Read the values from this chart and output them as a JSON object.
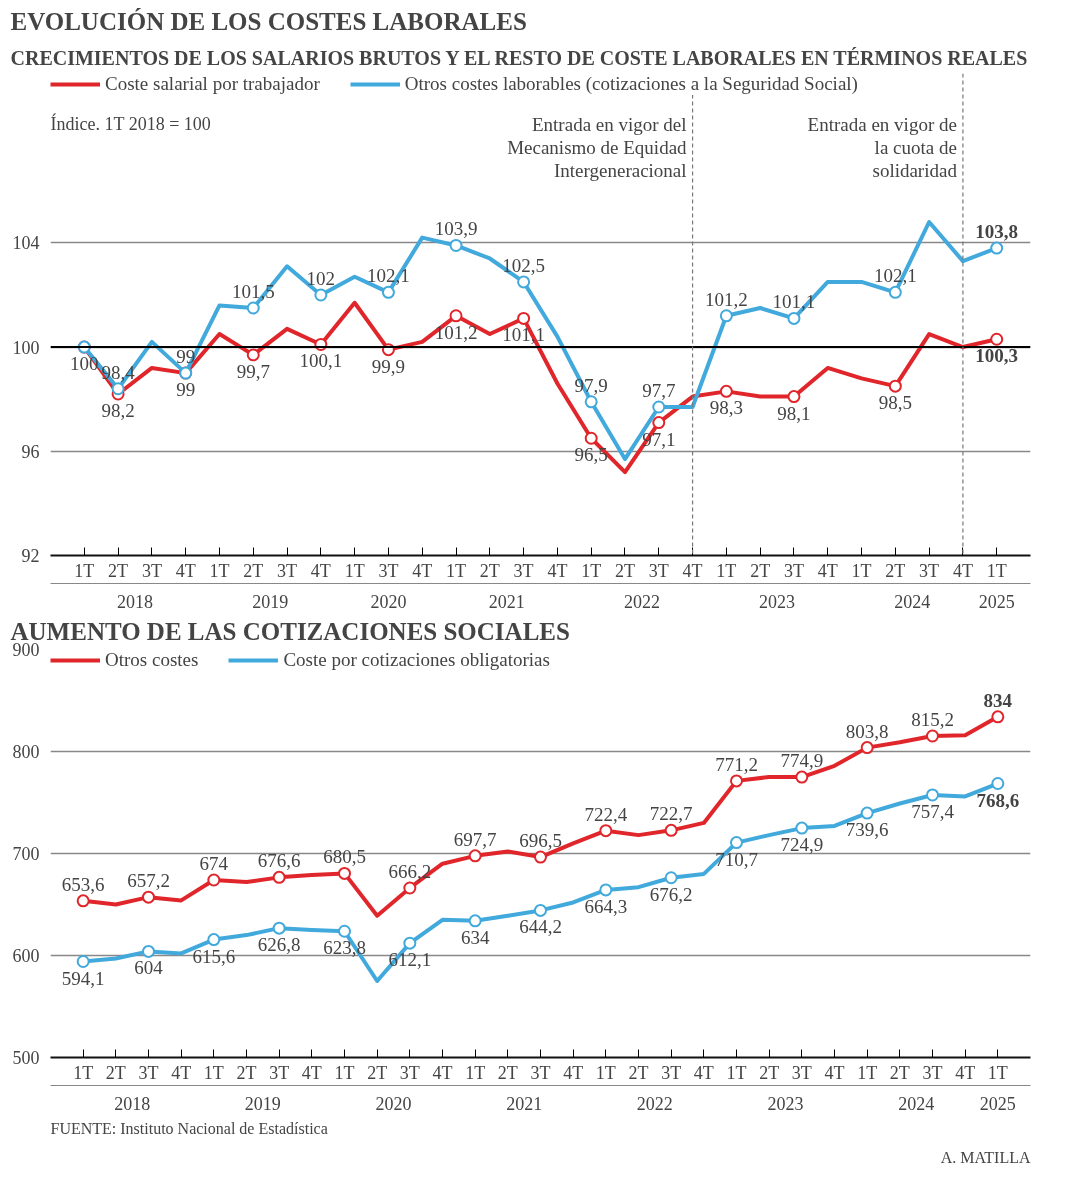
{
  "chart_data": [
    {
      "type": "line",
      "title": "EVOLUCIÓN DE LOS COSTES LABORALES",
      "subtitle": "CRECIMIENTOS DE LOS SALARIOS BRUTOS Y EL RESTO DE COSTE LABORALES EN TÉRMINOS REALES",
      "ylabel": "Índice. 1T 2018 = 100",
      "categories": [
        "1T",
        "2T",
        "3T",
        "4T",
        "1T",
        "2T",
        "3T",
        "4T",
        "1T",
        "3T",
        "4T",
        "1T",
        "2T",
        "3T",
        "4T",
        "1T",
        "2T",
        "3T",
        "4T",
        "1T",
        "2T",
        "3T",
        "4T",
        "1T",
        "2T",
        "3T",
        "4T",
        "1T"
      ],
      "x2lim": [
        2017.75,
        2025
      ],
      "x2ticks": [
        {
          "value": 2018.375,
          "label": "2018"
        },
        {
          "value": 2019.375,
          "label": "2019"
        },
        {
          "value": 2020.25,
          "label": "2020"
        },
        {
          "value": 2021.125,
          "label": "2021"
        },
        {
          "value": 2022.125,
          "label": "2022"
        },
        {
          "value": 2023.125,
          "label": "2023"
        },
        {
          "value": 2024.125,
          "label": "2024"
        },
        {
          "value": 2024.75,
          "label": "2025"
        }
      ],
      "ylim": [
        92,
        110.5
      ],
      "yticks": [
        92,
        96,
        100,
        104
      ],
      "grid": "y",
      "legend": "top left",
      "marker": "circle",
      "series": [
        {
          "name": "Coste salarial por trabajador",
          "color": "#e0262b",
          "values": [
            100,
            98.2,
            99.2,
            99,
            100.5,
            99.7,
            100.7,
            100.1,
            101.7,
            99.9,
            100.2,
            101.2,
            100.5,
            101.1,
            98.6,
            96.5,
            95.2,
            97.1,
            98.1,
            98.3,
            98.1,
            98.1,
            99.2,
            98.8,
            98.5,
            100.5,
            100.0,
            100.3
          ],
          "value_labels": [
            "100",
            "98,2",
            null,
            "99",
            null,
            "99,7",
            null,
            "100,1",
            null,
            "99,9",
            null,
            "101,2",
            null,
            "101,1",
            null,
            "96,5",
            null,
            "97,1",
            null,
            "98,3",
            null,
            "98,1",
            null,
            null,
            "98,5",
            null,
            null,
            "100,3"
          ]
        },
        {
          "name": "Otros costes laborables (cotizaciones a la Seguridad Social)",
          "color": "#41a9dc",
          "values": [
            100,
            98.4,
            100.2,
            99,
            101.6,
            101.5,
            103.1,
            102,
            102.7,
            102.1,
            104.2,
            103.9,
            103.4,
            102.5,
            100.4,
            97.9,
            95.7,
            97.7,
            97.7,
            101.2,
            101.5,
            101.1,
            102.5,
            102.5,
            102.1,
            104.8,
            103.3,
            103.8
          ],
          "value_labels": [
            null,
            "98,4",
            null,
            "99",
            null,
            "101,5",
            null,
            "102",
            null,
            "102,1",
            null,
            "103,9",
            null,
            "102,5",
            null,
            "97,9",
            null,
            "97,7",
            null,
            "101,2",
            null,
            "101,1",
            null,
            null,
            "102,1",
            null,
            null,
            "103,8"
          ]
        }
      ],
      "ref_lines": [
        {
          "axis": "y",
          "value": 100,
          "color": "#000000"
        },
        {
          "axis": "x2",
          "value": 2022.5,
          "label": "Entrada en vigor del Mecanismo de Equidad Intergeneracional",
          "line_style": "dashed",
          "color": "#777777"
        },
        {
          "axis": "x2",
          "value": 2024.5,
          "label": "Entrada en vigor de la cuota de solidaridad",
          "line_style": "dashed",
          "color": "#777777"
        }
      ]
    },
    {
      "type": "line",
      "title": "AUMENTO DE LAS COTIZACIONES SOCIALES",
      "categories": [
        "1T",
        "2T",
        "3T",
        "4T",
        "1T",
        "2T",
        "3T",
        "4T",
        "1T",
        "2T",
        "3T",
        "4T",
        "1T",
        "2T",
        "3T",
        "4T",
        "1T",
        "2T",
        "3T",
        "4T",
        "1T",
        "2T",
        "3T",
        "4T",
        "1T",
        "2T",
        "3T",
        "4T",
        "1T"
      ],
      "x2lim": [
        2017.75,
        2025.25
      ],
      "x2ticks": [
        {
          "value": 2018.375,
          "label": "2018"
        },
        {
          "value": 2019.375,
          "label": "2019"
        },
        {
          "value": 2020.375,
          "label": "2020"
        },
        {
          "value": 2021.375,
          "label": "2021"
        },
        {
          "value": 2022.375,
          "label": "2022"
        },
        {
          "value": 2023.375,
          "label": "2023"
        },
        {
          "value": 2024.375,
          "label": "2024"
        },
        {
          "value": 2025,
          "label": "2025"
        }
      ],
      "ylim": [
        500,
        900
      ],
      "yticks": [
        500,
        600,
        700,
        800,
        900
      ],
      "grid": "y",
      "legend": "top left",
      "marker": "circle",
      "series": [
        {
          "name": "Otros costes",
          "color": "#e0262b",
          "values": [
            653.6,
            650,
            657.2,
            654,
            674,
            672,
            676.6,
            679,
            680.5,
            639,
            666.2,
            690,
            697.7,
            702,
            696.5,
            710,
            722.4,
            718,
            722.7,
            730,
            771.2,
            775,
            774.9,
            786,
            803.8,
            809,
            815.2,
            816,
            834
          ],
          "value_labels": [
            "653,6",
            null,
            "657,2",
            null,
            "674",
            null,
            "676,6",
            null,
            "680,5",
            null,
            "666,2",
            null,
            "697,7",
            null,
            "696,5",
            null,
            "722,4",
            null,
            "722,7",
            null,
            "771,2",
            null,
            "774,9",
            null,
            "803,8",
            null,
            "815,2",
            null,
            "834"
          ]
        },
        {
          "name": "Coste por cotizaciones obligatorias",
          "color": "#41a9dc",
          "values": [
            594.1,
            597,
            604,
            602,
            615.6,
            620,
            626.8,
            625,
            623.8,
            575,
            612.1,
            635,
            634,
            639,
            644.2,
            652,
            664.3,
            667,
            676.2,
            680,
            710.7,
            718,
            724.9,
            727,
            739.6,
            749,
            757.4,
            756,
            768.6
          ],
          "value_labels": [
            "594,1",
            null,
            "604",
            null,
            "615,6",
            null,
            "626,8",
            null,
            "623,8",
            null,
            "612,1",
            null,
            "634",
            null,
            "644,2",
            null,
            "664,3",
            null,
            "676,2",
            null,
            "710,7",
            null,
            "724,9",
            null,
            "739,6",
            null,
            "757,4",
            null,
            "768,6"
          ]
        }
      ],
      "annotations": [
        "FUENTE: Instituto Nacional de Estadística",
        "A. MATILLA"
      ]
    }
  ]
}
